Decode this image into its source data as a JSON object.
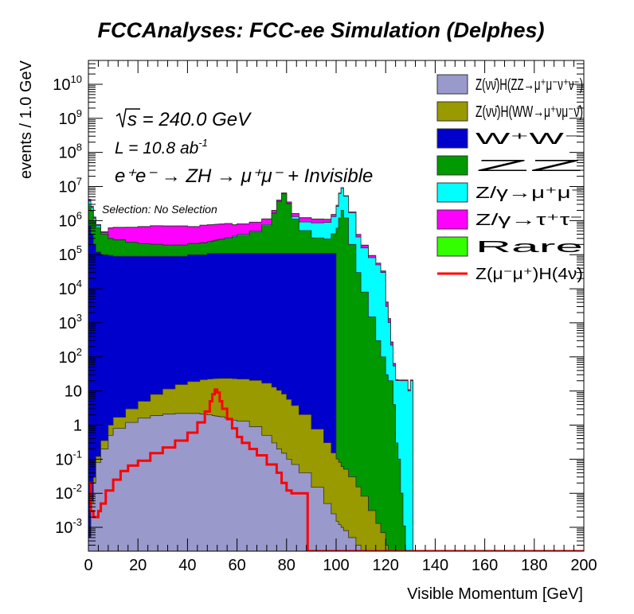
{
  "chart_data": {
    "type": "area",
    "stacked": true,
    "title": "FCCAnalyses: FCC-ee Simulation (Delphes)",
    "xlabel": "Visible Momentum [GeV]",
    "ylabel": "events / 1.0 GeV",
    "xlim": [
      0,
      200
    ],
    "ylim": [
      0.0002,
      50000000000
    ],
    "y_scale": "log",
    "grid": false,
    "legend_position": "top-right",
    "x_ticks": [
      0,
      20,
      40,
      60,
      80,
      100,
      120,
      140,
      160,
      180,
      200
    ],
    "y_ticks": [
      {
        "value": 0.001,
        "base": "10",
        "exp": "-3"
      },
      {
        "value": 0.01,
        "base": "10",
        "exp": "-2"
      },
      {
        "value": 0.1,
        "base": "10",
        "exp": "-1"
      },
      {
        "value": 1,
        "base": "1",
        "exp": ""
      },
      {
        "value": 10,
        "base": "10",
        "exp": ""
      },
      {
        "value": 100,
        "base": "10",
        "exp": "2"
      },
      {
        "value": 1000,
        "base": "10",
        "exp": "3"
      },
      {
        "value": 10000,
        "base": "10",
        "exp": "4"
      },
      {
        "value": 100000,
        "base": "10",
        "exp": "5"
      },
      {
        "value": 1000000,
        "base": "10",
        "exp": "6"
      },
      {
        "value": 10000000,
        "base": "10",
        "exp": "7"
      },
      {
        "value": 100000000,
        "base": "10",
        "exp": "8"
      },
      {
        "value": 1000000000,
        "base": "10",
        "exp": "9"
      },
      {
        "value": 10000000000,
        "base": "10",
        "exp": "10"
      }
    ],
    "annotations": {
      "sqrt_s": "s = 240.0 GeV",
      "lumi_main": "L = 10.8 ab",
      "lumi_exp": "-1",
      "process": "e⁺e⁻ → ZH → μ⁺μ⁻ + Invisible",
      "selection": "Selection: No Selection"
    },
    "x_points": [
      0,
      1,
      2,
      3,
      5,
      8,
      10,
      15,
      20,
      25,
      30,
      35,
      40,
      45,
      48,
      50,
      51,
      52,
      53,
      55,
      58,
      60,
      65,
      70,
      74,
      76,
      78,
      80,
      82,
      85,
      90,
      95,
      98,
      100,
      101,
      102,
      103,
      105,
      108,
      110,
      113,
      116,
      118,
      120,
      121,
      122,
      123,
      124,
      125,
      126,
      127,
      128,
      129,
      130,
      131,
      132,
      135,
      140,
      150,
      160,
      170,
      180,
      190,
      200
    ],
    "series": [
      {
        "name": "Z(νν̄)H(ZZ→μ⁺μ⁻ν⁺ν⁻)",
        "color": "#9999cc",
        "line": "#333333",
        "values": [
          0.0005,
          0.005,
          0.02,
          0.08,
          0.2,
          0.5,
          0.8,
          1.2,
          1.6,
          1.9,
          2.1,
          2.2,
          2.2,
          2.1,
          2.0,
          1.9,
          1.85,
          1.8,
          1.75,
          1.6,
          1.4,
          1.3,
          0.9,
          0.5,
          0.3,
          0.2,
          0.15,
          0.1,
          0.07,
          0.04,
          0.015,
          0.005,
          0.0025,
          0.0015,
          0.0012,
          0.001,
          0.0008,
          0.0005,
          0.0003,
          0.0002,
          0.0001,
          0.0001,
          0.0001,
          0.0001,
          0.0001,
          0.0001,
          0.0001,
          0.0001,
          0.0001,
          0.0001,
          0.0001,
          0.0001,
          0.0001,
          0.0001,
          0.0001,
          0.0001,
          0.0001,
          0.0001,
          0.0001,
          0.0001,
          0.0001,
          0.0001,
          0.0001,
          0.0001
        ]
      },
      {
        "name": "Z(νν̄)H(WW→μ⁺νμ⁻ν̄)",
        "color": "#999900",
        "line": "#333333",
        "values": [
          0,
          0.001,
          0.01,
          0.04,
          0.15,
          0.5,
          0.9,
          1.8,
          3.4,
          6.1,
          9.4,
          13.3,
          16.8,
          19.4,
          20.5,
          21.1,
          21.3,
          21.5,
          21.7,
          21.9,
          21.6,
          21.2,
          19.6,
          16.5,
          12.7,
          10.3,
          8.0,
          5.6,
          3.7,
          2.0,
          0.75,
          0.3,
          0.15,
          0.1,
          0.08,
          0.06,
          0.05,
          0.03,
          0.015,
          0.008,
          0.003,
          0.0012,
          0.0006,
          0.0002,
          0,
          0,
          0,
          0,
          0,
          0,
          0,
          0,
          0,
          0,
          0,
          0,
          0,
          0,
          0,
          0,
          0,
          0,
          0,
          0
        ]
      },
      {
        "name": "W⁺W⁻",
        "color": "#0000cc",
        "line": "#333333",
        "values": [
          700000,
          400000,
          200000,
          120000,
          100000,
          95000,
          90000,
          90000,
          90000,
          90000,
          90000,
          90000,
          100000,
          100000,
          110000,
          110000,
          110000,
          110000,
          110000,
          110000,
          110000,
          110000,
          110000,
          110000,
          110000,
          110000,
          110000,
          110000,
          110000,
          110000,
          110000,
          110000,
          110000,
          0,
          0,
          0,
          0,
          0,
          0,
          0,
          0,
          0,
          0,
          0,
          0,
          0,
          0,
          0,
          0,
          0,
          0,
          0,
          0,
          0,
          0,
          0,
          0,
          0,
          0,
          0,
          0,
          0,
          0,
          0
        ]
      },
      {
        "name": "ZZ",
        "color": "#009900",
        "line": "#333333",
        "values": [
          2000000,
          1500000,
          800000,
          500000,
          300000,
          200000,
          180000,
          140000,
          120000,
          110000,
          100000,
          100000,
          110000,
          120000,
          130000,
          140000,
          150000,
          160000,
          170000,
          190000,
          220000,
          260000,
          350000,
          600000,
          1500000,
          3500000,
          6000000,
          3000000,
          1000000,
          400000,
          200000,
          180000,
          300000,
          600000,
          1200000,
          2000000,
          1200000,
          200000,
          30000,
          8000,
          1500,
          300,
          100,
          30,
          20,
          20,
          4,
          0.3,
          0.1,
          0.01,
          0.001,
          0.0001,
          0,
          0,
          0,
          0,
          0,
          0,
          0,
          0,
          0,
          0,
          0,
          0
        ]
      },
      {
        "name": "Z/γ→μ⁺μ⁻",
        "color": "#00ffff",
        "line": "#333333",
        "values": [
          1000000,
          500000,
          150000,
          80000,
          30000,
          10000,
          5000,
          3000,
          2000,
          2000,
          2000,
          3000,
          5000,
          6000,
          8000,
          10000,
          10000,
          10000,
          10000,
          15000,
          20000,
          25000,
          35000,
          55000,
          80000,
          80000,
          60000,
          100000,
          200000,
          400000,
          550000,
          600000,
          900000,
          2000000,
          5000000,
          7000000,
          4000000,
          1500000,
          300000,
          150000,
          80000,
          50000,
          30000,
          3000,
          1000,
          200,
          50,
          20,
          20,
          20,
          20,
          20,
          10,
          20,
          0,
          0,
          0,
          0,
          0,
          0,
          0,
          0,
          0,
          0
        ]
      },
      {
        "name": "Z/γ→τ⁺τ⁻",
        "color": "#ff00ff",
        "line": "#333333",
        "values": [
          400000,
          200000,
          100000,
          50000,
          30000,
          300000,
          350000,
          400000,
          450000,
          500000,
          500000,
          500000,
          450000,
          500000,
          500000,
          500000,
          500000,
          500000,
          500000,
          500000,
          400000,
          400000,
          400000,
          350000,
          300000,
          300000,
          300000,
          300000,
          300000,
          300000,
          250000,
          200000,
          200000,
          200000,
          200000,
          200000,
          150000,
          100000,
          60000,
          30000,
          12000,
          6000,
          3000,
          1000,
          300,
          50,
          10,
          1.2,
          1.0,
          1.0,
          1.0,
          1.0,
          1.0,
          1.0,
          0,
          0,
          0,
          0,
          0,
          0,
          0,
          0,
          0,
          0
        ]
      },
      {
        "name": "Rare",
        "color": "#33ff00",
        "line": "#333333",
        "values": [
          100000,
          50000,
          30000,
          20000,
          15000,
          12000,
          10000,
          8000,
          8000,
          8000,
          8000,
          8000,
          8000,
          8000,
          8000,
          8000,
          8000,
          8000,
          8000,
          8000,
          8000,
          8000,
          8000,
          8000,
          8000,
          8000,
          8000,
          8000,
          8000,
          8000,
          8000,
          8000,
          8000,
          8000,
          8000,
          8000,
          8000,
          8000,
          5000,
          3000,
          1500,
          500,
          200,
          80,
          20,
          5,
          1,
          0.2,
          0,
          0,
          0,
          0,
          0,
          0,
          0,
          0,
          0,
          0,
          0,
          0,
          0,
          0,
          0,
          0
        ]
      }
    ],
    "signal": {
      "name": "Z(μ⁻μ⁺)H(4ν)",
      "color": "#ff0000",
      "x": [
        0,
        1,
        2,
        3,
        4,
        5,
        7,
        10,
        13,
        16,
        20,
        25,
        30,
        35,
        40,
        44,
        47,
        49,
        50,
        51,
        52,
        53,
        54,
        56,
        58,
        60,
        62,
        65,
        68,
        72,
        76,
        78,
        80,
        82,
        84,
        86,
        87,
        88,
        88.5,
        89,
        200
      ],
      "values": [
        0.02,
        0.003,
        0.002,
        0.002,
        0.003,
        0.005,
        0.012,
        0.025,
        0.045,
        0.065,
        0.09,
        0.15,
        0.22,
        0.35,
        0.6,
        1.2,
        2.5,
        5.0,
        8.0,
        11.0,
        9.0,
        5.0,
        3.0,
        1.5,
        0.8,
        0.45,
        0.3,
        0.2,
        0.13,
        0.07,
        0.04,
        0.02,
        0.012,
        0.01,
        0.01,
        0.01,
        0.01,
        0.01,
        0.0001,
        0.0001,
        0.0001
      ]
    }
  }
}
